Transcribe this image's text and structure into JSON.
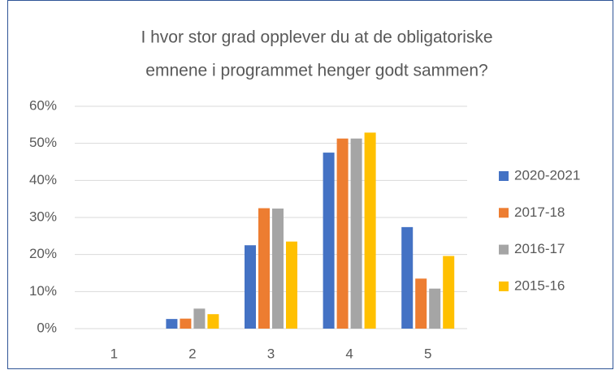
{
  "chart_data": {
    "type": "bar",
    "title": [
      "I hvor stor grad opplever du at de obligatoriske",
      "emnene i programmet henger godt sammen?"
    ],
    "categories": [
      "1",
      "2",
      "3",
      "4",
      "5"
    ],
    "series": [
      {
        "name": "2020-2021",
        "color": "#4472c4",
        "values": [
          0,
          2.6,
          22.5,
          47.5,
          27.4
        ]
      },
      {
        "name": "2017-18",
        "color": "#ed7d31",
        "values": [
          0,
          2.7,
          32.5,
          51.3,
          13.5
        ]
      },
      {
        "name": "2016-17",
        "color": "#a5a5a5",
        "values": [
          0,
          5.4,
          32.4,
          51.3,
          10.8
        ]
      },
      {
        "name": "2015-16",
        "color": "#ffc000",
        "values": [
          0,
          3.9,
          23.5,
          52.9,
          19.6
        ]
      }
    ],
    "ylim": [
      0,
      60
    ],
    "yticks": [
      {
        "value": 0,
        "label": "0%"
      },
      {
        "value": 10,
        "label": "10%"
      },
      {
        "value": 20,
        "label": "20%"
      },
      {
        "value": 30,
        "label": "30%"
      },
      {
        "value": 40,
        "label": "40%"
      },
      {
        "value": 50,
        "label": "50%"
      },
      {
        "value": 60,
        "label": "60%"
      }
    ],
    "grid": true,
    "legend": "right"
  }
}
